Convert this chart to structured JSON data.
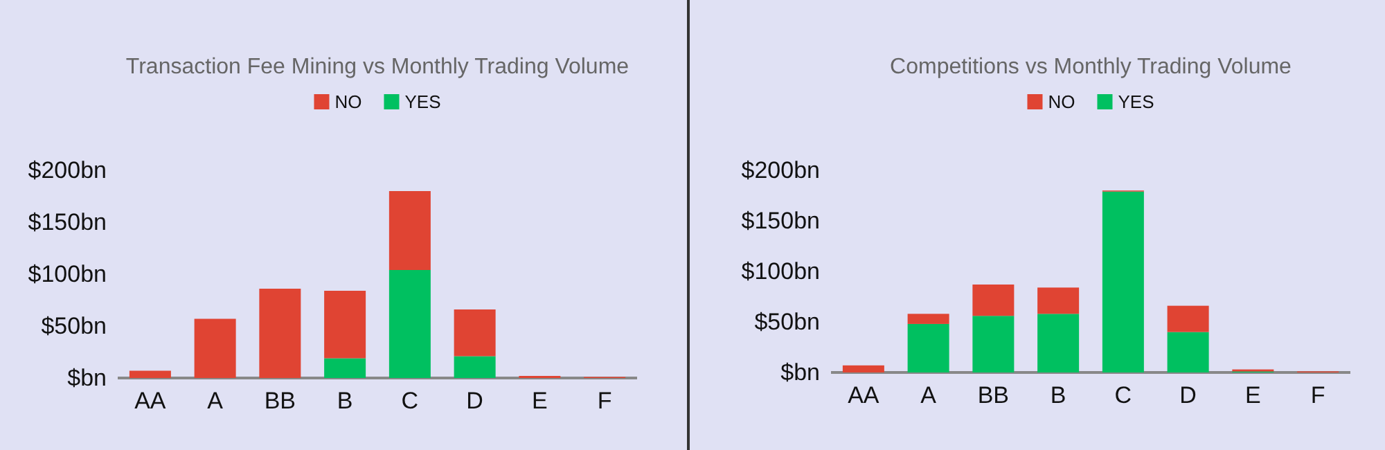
{
  "chart_data": [
    {
      "type": "bar",
      "title": "Transaction Fee Mining vs Monthly Trading Volume",
      "categories": [
        "AA",
        "A",
        "BB",
        "B",
        "C",
        "D",
        "E",
        "F"
      ],
      "stacked": true,
      "legend": "top",
      "series": [
        {
          "name": "YES",
          "color": "#00c060",
          "values": [
            0,
            0,
            0,
            19,
            104,
            21,
            0,
            0
          ]
        },
        {
          "name": "NO",
          "color": "#e04433",
          "values": [
            7,
            57,
            86,
            65,
            76,
            45,
            2,
            1
          ]
        }
      ],
      "ylim": [
        0,
        200
      ],
      "yticks": [
        {
          "value": 0,
          "label": "$bn"
        },
        {
          "value": 50,
          "label": "$50bn"
        },
        {
          "value": 100,
          "label": "$100bn"
        },
        {
          "value": 150,
          "label": "$150bn"
        },
        {
          "value": 200,
          "label": "$200bn"
        }
      ],
      "grid": false
    },
    {
      "type": "bar",
      "title": "Competitions vs Monthly Trading Volume",
      "categories": [
        "AA",
        "A",
        "BB",
        "B",
        "C",
        "D",
        "E",
        "F"
      ],
      "stacked": true,
      "legend": "top",
      "series": [
        {
          "name": "YES",
          "color": "#00c060",
          "values": [
            0,
            48,
            56,
            58,
            179,
            40,
            1,
            0
          ]
        },
        {
          "name": "NO",
          "color": "#e04433",
          "values": [
            7,
            10,
            31,
            26,
            1,
            26,
            2,
            1
          ]
        }
      ],
      "ylim": [
        0,
        200
      ],
      "yticks": [
        {
          "value": 0,
          "label": "$bn"
        },
        {
          "value": 50,
          "label": "$50bn"
        },
        {
          "value": 100,
          "label": "$100bn"
        },
        {
          "value": 150,
          "label": "$150bn"
        },
        {
          "value": 200,
          "label": "$200bn"
        }
      ],
      "grid": false
    }
  ]
}
